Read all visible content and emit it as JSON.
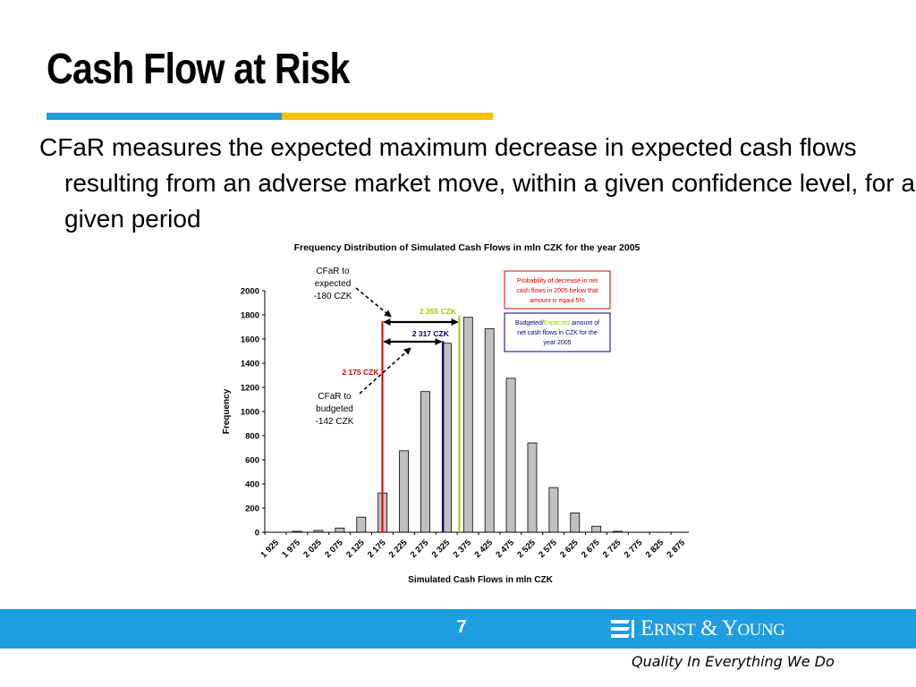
{
  "slide": {
    "title": "Cash Flow at Risk",
    "body": "CFaR measures the expected maximum decrease in expected cash flows resulting from an adverse market move, within a given confidence level, for a given period",
    "page_number": "7",
    "logo_text": "Ernst & Young",
    "tagline": "Quality In Everything We Do"
  },
  "colors": {
    "accent_blue": "#1e9de0",
    "accent_yellow": "#ffc000",
    "bar_fill": "#c0c0c0",
    "red_line": "#e00000",
    "green_line": "#99cc00",
    "navy_line": "#000080"
  },
  "chart_data": {
    "type": "bar",
    "title": "Frequency Distribution of Simulated Cash Flows in mln CZK for the year 2005",
    "xlabel": "Simulated Cash Flows in mln CZK",
    "ylabel": "Frequency",
    "ylim": [
      0,
      2000
    ],
    "yticks": [
      "0",
      "200",
      "400",
      "600",
      "800",
      "1000",
      "1200",
      "1400",
      "1600",
      "1800",
      "2000"
    ],
    "x_tick_labels": [
      "1 925",
      "1 975",
      "2 025",
      "2 075",
      "2 125",
      "2 175",
      "2 225",
      "2 275",
      "2 325",
      "2 375",
      "2 425",
      "2 475",
      "2 525",
      "2 575",
      "2 625",
      "2 675",
      "2 725",
      "2 775",
      "2 825",
      "2 875"
    ],
    "values": [
      0,
      8,
      15,
      35,
      125,
      325,
      675,
      1165,
      1565,
      1780,
      1685,
      1275,
      740,
      370,
      160,
      50,
      8,
      0,
      0,
      0
    ],
    "markers": [
      {
        "label": "2 175 CZK",
        "value": 2175,
        "color": "red"
      },
      {
        "label": "2 317 CZK",
        "value": 2317,
        "color": "navy"
      },
      {
        "label": "2 355 CZK",
        "value": 2355,
        "color": "green"
      }
    ],
    "annotations": {
      "cfar_expected": [
        "CFaR to",
        "expected",
        "-180 CZK"
      ],
      "cfar_budgeted": [
        "CFaR to",
        "budgeted",
        "-142 CZK"
      ],
      "prob_box": [
        "Probability of decrease in net",
        "cash flows in 2005 below that",
        "amount is eqaul 5%"
      ],
      "budget_box": {
        "part1": "Budgeted/",
        "part2": "Expected",
        "part3": " amount of",
        "line2": "net cash flows in CZK for the",
        "line3": "year 2005"
      }
    }
  }
}
